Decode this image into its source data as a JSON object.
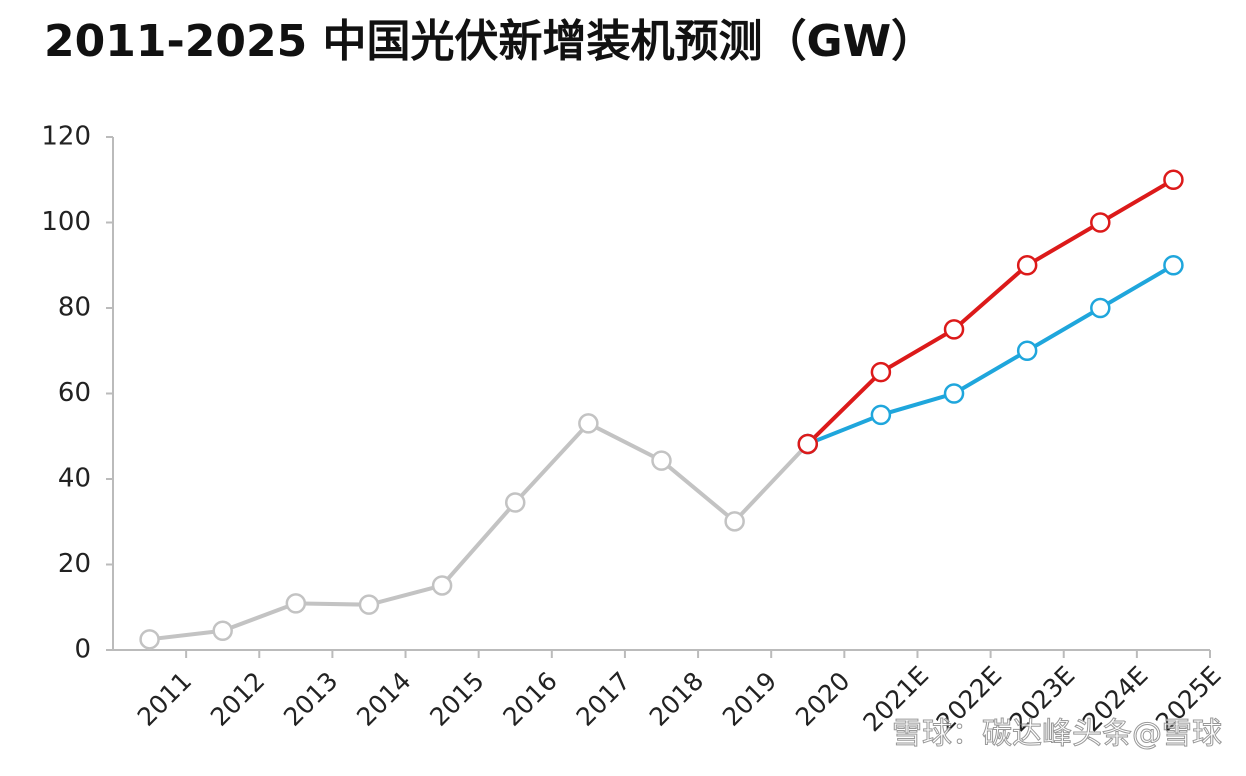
{
  "chart_data": {
    "type": "line",
    "title": "2011-2025 中国光伏新增装机预测（GW）",
    "watermark": "雪球：碳达峰头条@雪球",
    "categories": [
      "2011",
      "2012",
      "2013",
      "2014",
      "2015",
      "2016",
      "2017",
      "2018",
      "2019",
      "2020",
      "2021E",
      "2022E",
      "2023E",
      "2024E",
      "2025E"
    ],
    "series": [
      {
        "color": "#c3c3c3",
        "values": [
          2.5,
          4.5,
          10.9,
          10.6,
          15.1,
          34.5,
          53,
          44.3,
          30.1,
          48.2,
          null,
          null,
          null,
          null,
          null
        ]
      },
      {
        "color": "#1fa6dc",
        "values": [
          null,
          null,
          null,
          null,
          null,
          null,
          null,
          null,
          null,
          48.2,
          55,
          60,
          70,
          80,
          90
        ]
      },
      {
        "color": "#dc1a1a",
        "values": [
          null,
          null,
          null,
          null,
          null,
          null,
          null,
          null,
          null,
          48.2,
          65,
          75,
          90,
          100,
          110
        ]
      }
    ],
    "ylim": [
      0,
      120
    ],
    "yticks": [
      0,
      20,
      40,
      60,
      80,
      100,
      120
    ],
    "grid": false
  }
}
